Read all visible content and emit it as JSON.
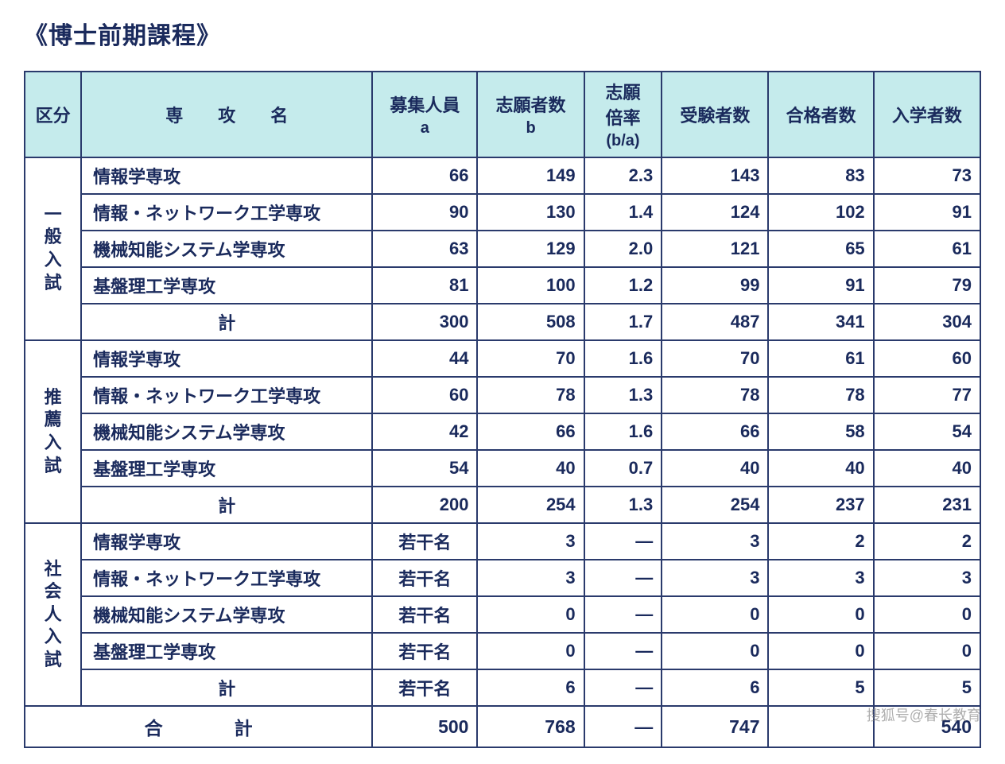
{
  "title": "《博士前期課程》",
  "columns": {
    "c1": "区分",
    "c2": "専　　攻　　名",
    "c3_l1": "募集人員",
    "c3_l2": "a",
    "c4_l1": "志願者数",
    "c4_l2": "b",
    "c5_l1": "志願",
    "c5_l2": "倍率",
    "c5_l3": "(b/a)",
    "c6": "受験者数",
    "c7": "合格者数",
    "c8": "入学者数"
  },
  "col_widths": {
    "c1": 70,
    "c2": 360,
    "c3": 130,
    "c4": 132,
    "c5": 96,
    "c6": 132,
    "c7": 130,
    "c8": 132
  },
  "sections": [
    {
      "name": "一般入試",
      "rows": [
        {
          "major": "情報学専攻",
          "a": "66",
          "b": "149",
          "ratio": "2.3",
          "exam": "143",
          "pass": "83",
          "enroll": "73"
        },
        {
          "major": "情報・ネットワーク工学専攻",
          "a": "90",
          "b": "130",
          "ratio": "1.4",
          "exam": "124",
          "pass": "102",
          "enroll": "91"
        },
        {
          "major": "機械知能システム学専攻",
          "a": "63",
          "b": "129",
          "ratio": "2.0",
          "exam": "121",
          "pass": "65",
          "enroll": "61"
        },
        {
          "major": "基盤理工学専攻",
          "a": "81",
          "b": "100",
          "ratio": "1.2",
          "exam": "99",
          "pass": "91",
          "enroll": "79"
        }
      ],
      "subtotal": {
        "label": "計",
        "a": "300",
        "b": "508",
        "ratio": "1.7",
        "exam": "487",
        "pass": "341",
        "enroll": "304"
      }
    },
    {
      "name": "推薦入試",
      "rows": [
        {
          "major": "情報学専攻",
          "a": "44",
          "b": "70",
          "ratio": "1.6",
          "exam": "70",
          "pass": "61",
          "enroll": "60"
        },
        {
          "major": "情報・ネットワーク工学専攻",
          "a": "60",
          "b": "78",
          "ratio": "1.3",
          "exam": "78",
          "pass": "78",
          "enroll": "77"
        },
        {
          "major": "機械知能システム学専攻",
          "a": "42",
          "b": "66",
          "ratio": "1.6",
          "exam": "66",
          "pass": "58",
          "enroll": "54"
        },
        {
          "major": "基盤理工学専攻",
          "a": "54",
          "b": "40",
          "ratio": "0.7",
          "exam": "40",
          "pass": "40",
          "enroll": "40"
        }
      ],
      "subtotal": {
        "label": "計",
        "a": "200",
        "b": "254",
        "ratio": "1.3",
        "exam": "254",
        "pass": "237",
        "enroll": "231"
      }
    },
    {
      "name": "社会人入試",
      "rows": [
        {
          "major": "情報学専攻",
          "a": "若干名",
          "a_center": true,
          "b": "3",
          "ratio": "―",
          "exam": "3",
          "pass": "2",
          "enroll": "2"
        },
        {
          "major": "情報・ネットワーク工学専攻",
          "a": "若干名",
          "a_center": true,
          "b": "3",
          "ratio": "―",
          "exam": "3",
          "pass": "3",
          "enroll": "3"
        },
        {
          "major": "機械知能システム学専攻",
          "a": "若干名",
          "a_center": true,
          "b": "0",
          "ratio": "―",
          "exam": "0",
          "pass": "0",
          "enroll": "0"
        },
        {
          "major": "基盤理工学専攻",
          "a": "若干名",
          "a_center": true,
          "b": "0",
          "ratio": "―",
          "exam": "0",
          "pass": "0",
          "enroll": "0"
        }
      ],
      "subtotal": {
        "label": "計",
        "a": "若干名",
        "a_center": true,
        "b": "6",
        "ratio": "―",
        "exam": "6",
        "pass": "5",
        "enroll": "5"
      }
    }
  ],
  "grand_total": {
    "label": "合計",
    "a": "500",
    "b": "768",
    "ratio": "―",
    "exam": "747",
    "pass": "",
    "enroll": "540"
  },
  "watermark": "搜狐号@春长教育",
  "colors": {
    "header_bg": "#c5ebec",
    "border": "#2a3a6c",
    "text": "#1a2a5c",
    "background": "#ffffff"
  }
}
